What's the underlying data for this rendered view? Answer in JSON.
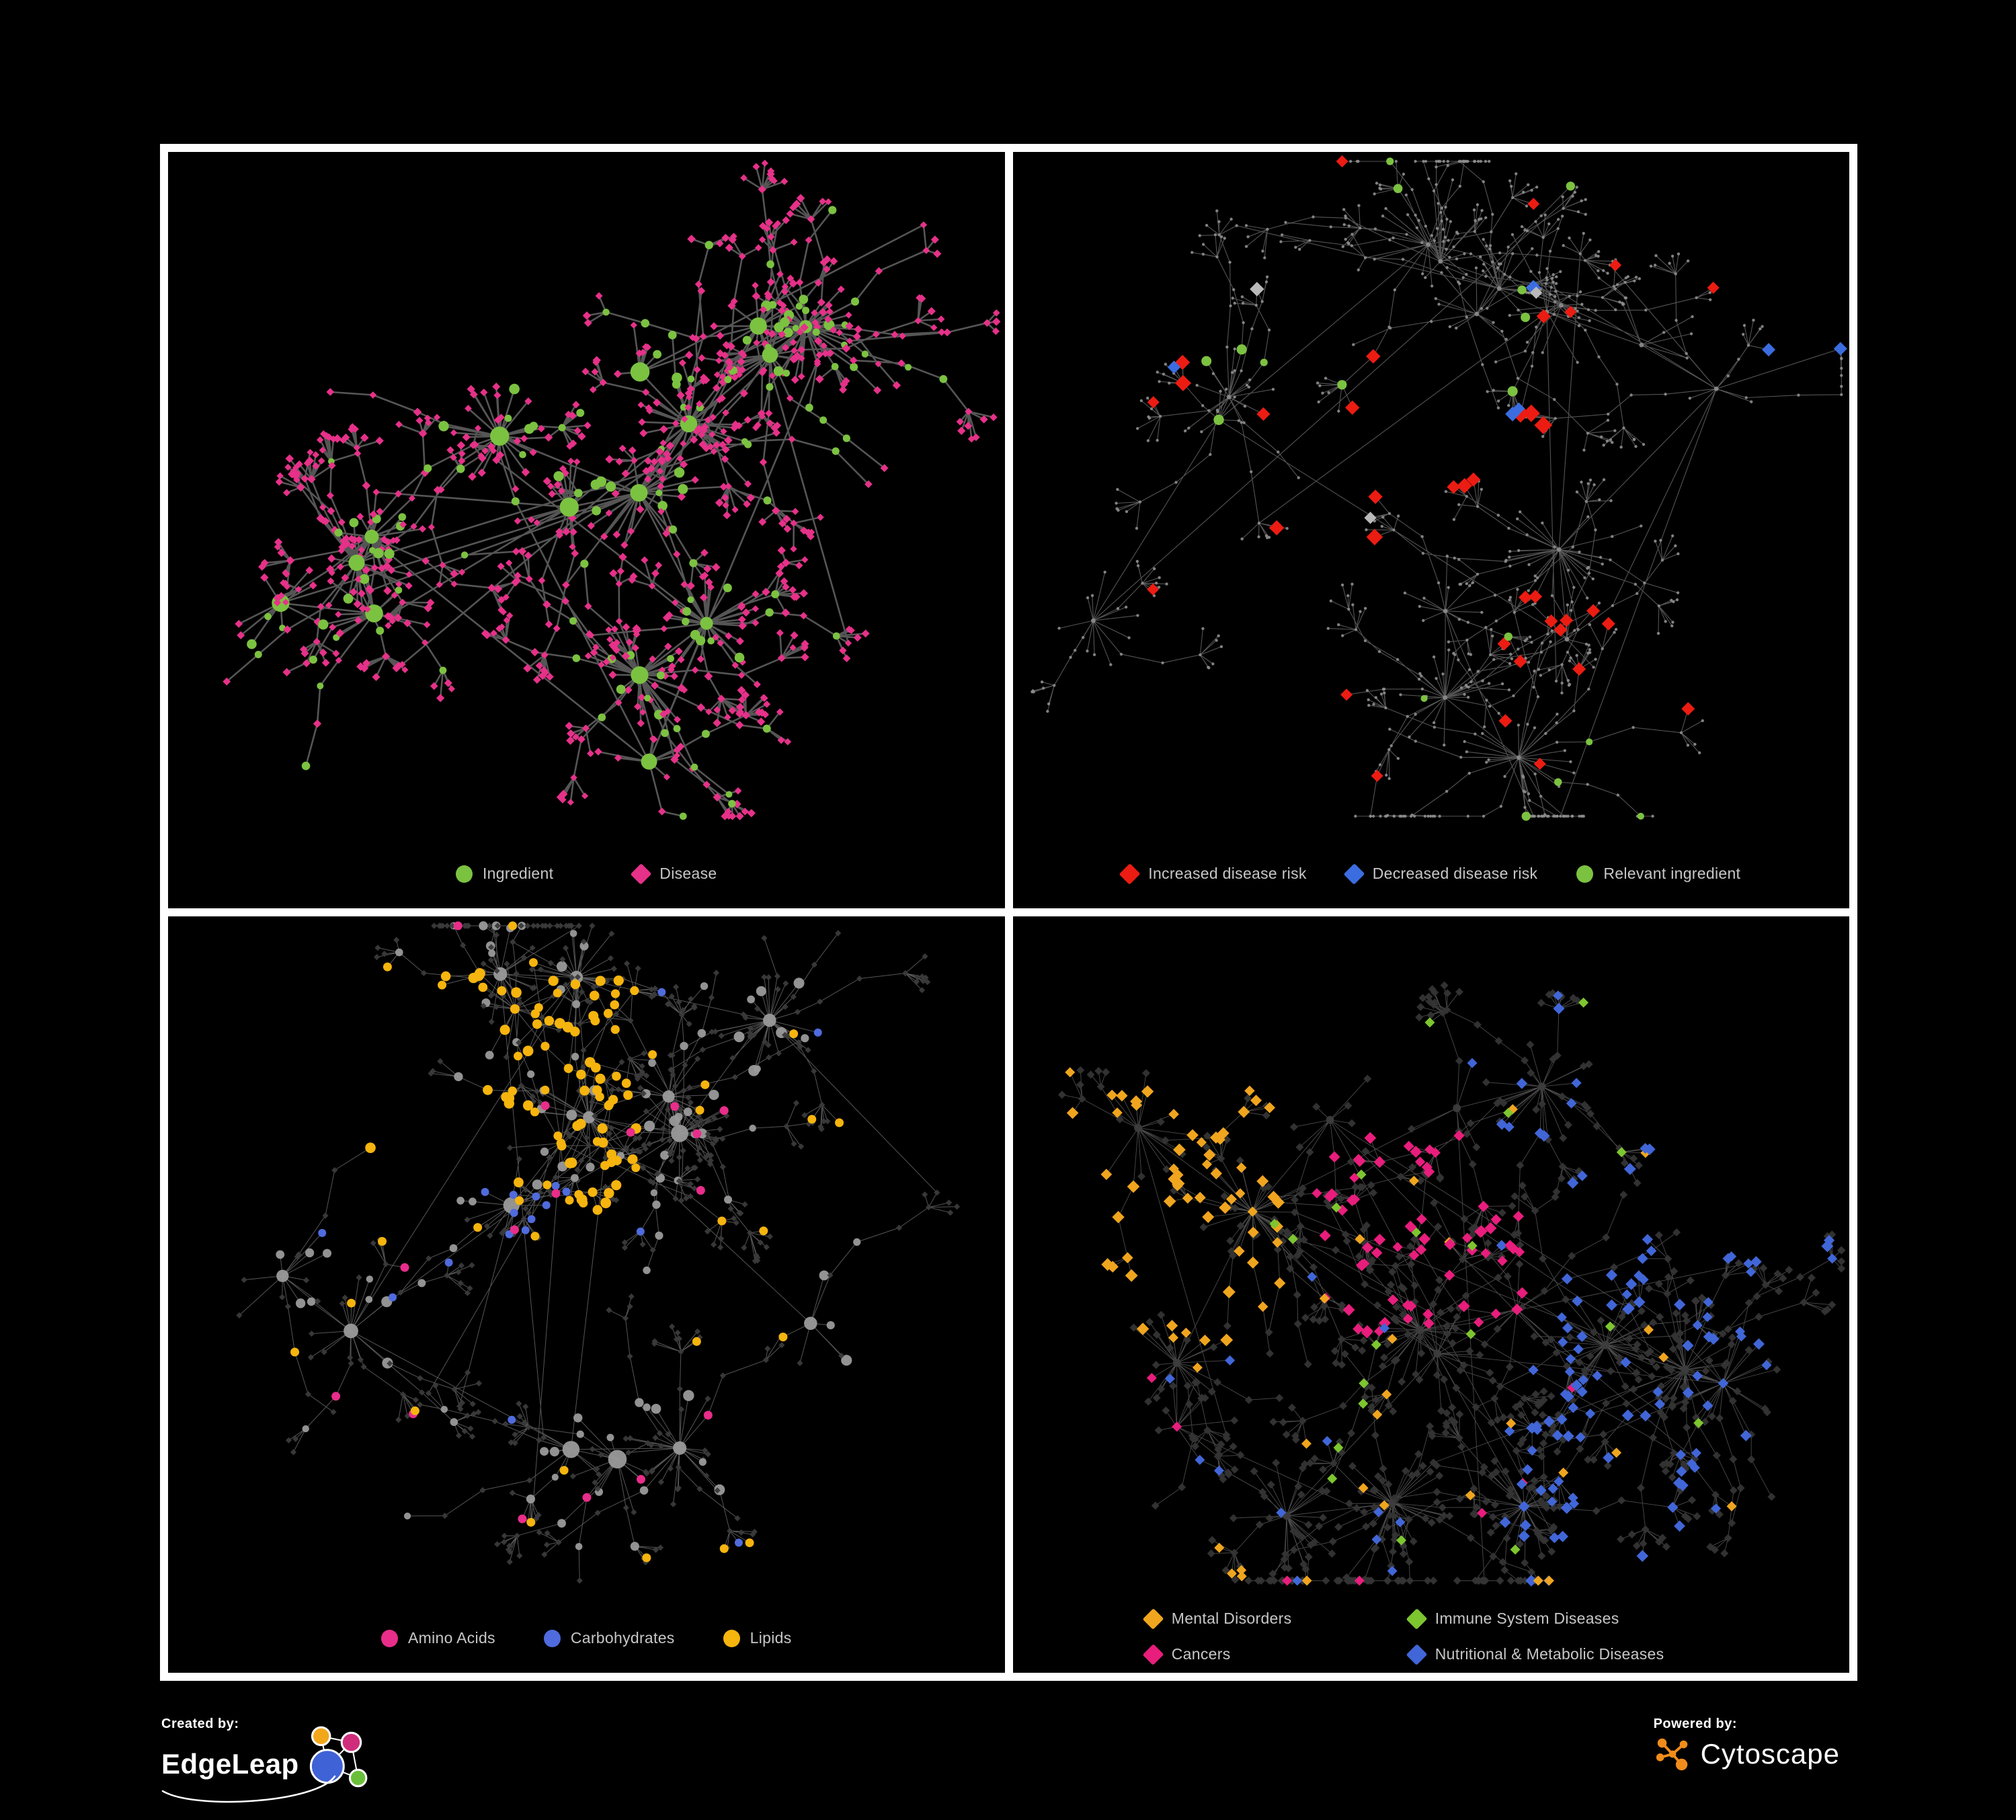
{
  "page": {
    "background": "#000000",
    "frame_color": "#ffffff"
  },
  "panels": [
    {
      "name": "ingredient-disease-network",
      "legend": [
        {
          "label": "Ingredient",
          "shape": "circle",
          "color": "#7cc241"
        },
        {
          "label": "Disease",
          "shape": "diamond",
          "color": "#e63189"
        }
      ],
      "network": {
        "mode": "two-tone",
        "seed": 7,
        "clusters": 15,
        "leaf_max": 40,
        "chain_p": 0.22,
        "disease_p": 0.78,
        "colors": {
          "ingredient": "#7cc241",
          "disease": "#e63189"
        },
        "edge": {
          "color": "#646464",
          "width": 2.6,
          "opacity": 0.85
        }
      }
    },
    {
      "name": "disease-risk-network",
      "legend": [
        {
          "label": "Increased disease risk",
          "shape": "diamond",
          "color": "#ec1c12"
        },
        {
          "label": "Decreased disease risk",
          "shape": "diamond",
          "color": "#3b6de0"
        },
        {
          "label": "Relevant ingredient",
          "shape": "circle",
          "color": "#7cc241"
        }
      ],
      "network": {
        "mode": "risk",
        "seed": 13,
        "clusters": 16,
        "leaf_max": 26,
        "chain_p": 0.34,
        "disease_p": 0.8,
        "colors": {
          "base": "#8d8d8d",
          "increased": "#ec1c12",
          "decreased": "#3b6de0",
          "neutral": "#b9b9b9",
          "ingredient": "#7cc241"
        },
        "edge": {
          "color": "#5d5d5d",
          "width": 1.1,
          "opacity": 0.9
        }
      }
    },
    {
      "name": "macronutrient-network",
      "legend": [
        {
          "label": "Amino Acids",
          "shape": "circle",
          "color": "#e82d8a"
        },
        {
          "label": "Carbohydrates",
          "shape": "circle",
          "color": "#4f6bdd"
        },
        {
          "label": "Lipids",
          "shape": "circle",
          "color": "#f6b40e"
        }
      ],
      "network": {
        "mode": "macro",
        "seed": 21,
        "clusters": 15,
        "leaf_max": 36,
        "chain_p": 0.24,
        "disease_p": 0.74,
        "colors": {
          "circle": "#9a9a9a",
          "diamond": "#3a3a3a",
          "amino": "#e82d8a",
          "carb": "#4f6bdd",
          "lipid": "#f6b40e"
        },
        "edge": {
          "color": "#7a7a7a",
          "width": 1.0,
          "opacity": 0.7
        }
      }
    },
    {
      "name": "disease-category-network",
      "legend": [
        {
          "label": "Mental Disorders",
          "shape": "diamond",
          "color": "#f0a51f"
        },
        {
          "label": "Immune System Diseases",
          "shape": "diamond",
          "color": "#7dc62f"
        },
        {
          "label": "Cancers",
          "shape": "diamond",
          "color": "#e81d7c"
        },
        {
          "label": "Nutritional & Metabolic Diseases",
          "shape": "diamond",
          "color": "#4166d8"
        }
      ],
      "network": {
        "mode": "categories",
        "seed": 29,
        "clusters": 16,
        "leaf_max": 36,
        "chain_p": 0.26,
        "disease_p": 0.82,
        "colors": {
          "base": "#343434",
          "hub": "#3c3c3c",
          "mental": "#f0a51f",
          "immune": "#7dc62f",
          "cancer": "#e81d7c",
          "nutritional": "#4166d8"
        },
        "edge": {
          "color": "#6b6b6b",
          "width": 0.9,
          "opacity": 0.7
        }
      }
    }
  ],
  "footer": {
    "created_by_label": "Created by:",
    "created_by_name": "EdgeLeap",
    "powered_by_label": "Powered by:",
    "powered_by_name": "Cytoscape",
    "edgeleap_colors": [
      "#f2a71b",
      "#cf2d7c",
      "#3f62d6",
      "#6abf3a"
    ],
    "cytoscape_color": "#f08c1a"
  }
}
